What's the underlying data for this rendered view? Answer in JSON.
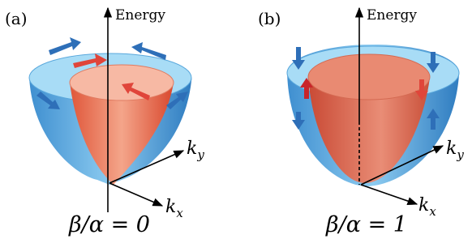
{
  "panels": [
    {
      "label": "(a)",
      "energy_axis": "Energy",
      "ky": {
        "symbol": "k",
        "sub": "y"
      },
      "kx": {
        "symbol": "k",
        "sub": "x"
      },
      "caption": "β/α = 0"
    },
    {
      "label": "(b)",
      "energy_axis": "Energy",
      "ky": {
        "symbol": "k",
        "sub": "y"
      },
      "kx": {
        "symbol": "k",
        "sub": "x"
      },
      "caption": "β/α = 1"
    }
  ]
}
